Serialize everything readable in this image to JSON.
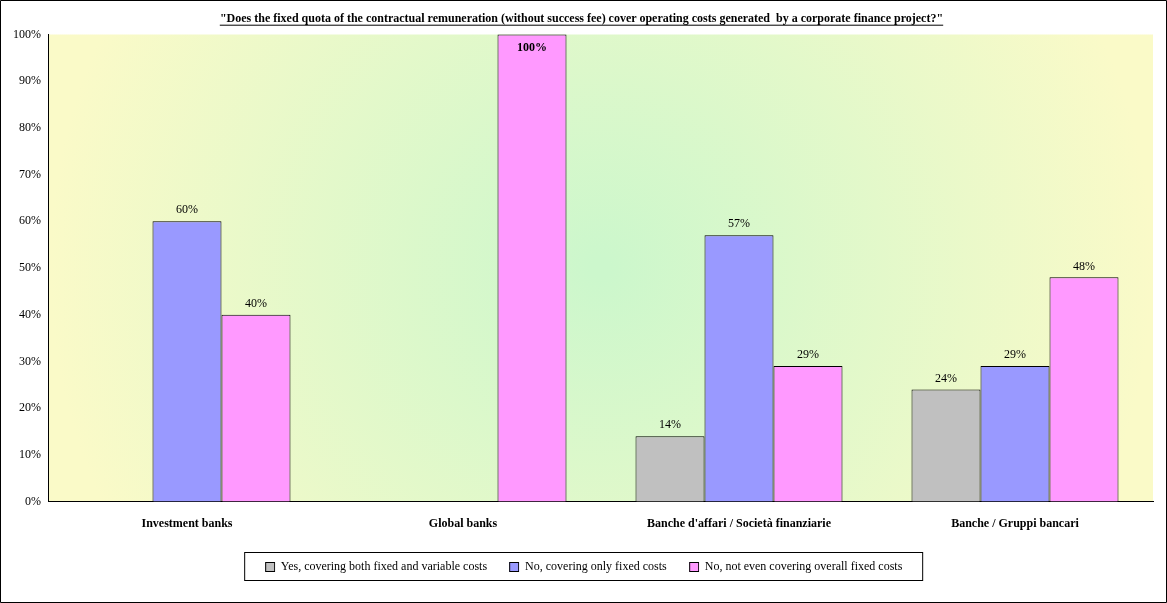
{
  "chart_data": {
    "type": "bar",
    "title": "\"Does the fixed quota of the contractual remuneration (without success fee) cover operating costs generated  by a corporate finance project?\"",
    "categories": [
      "Investment banks",
      "Global banks",
      "Banche d'affari / Società finanziarie",
      "Banche / Gruppi bancari"
    ],
    "series": [
      {
        "name": "Yes, covering both fixed and variable costs",
        "color": "#c0c0c0",
        "values": [
          null,
          null,
          14,
          24
        ],
        "value_labels": [
          null,
          null,
          "14%",
          "24%"
        ]
      },
      {
        "name": "No, covering only fixed costs",
        "color": "#9999ff",
        "values": [
          60,
          null,
          57,
          29
        ],
        "value_labels": [
          "60%",
          null,
          "57%",
          "29%"
        ]
      },
      {
        "name": "No, not even covering overall fixed costs",
        "color": "#ff99ff",
        "values": [
          40,
          100,
          29,
          48
        ],
        "value_labels": [
          "40%",
          "100%",
          "29%",
          "48%"
        ]
      }
    ],
    "ylim": [
      0,
      100
    ],
    "yticks": [
      {
        "value": 0,
        "label": "0%"
      },
      {
        "value": 10,
        "label": "10%"
      },
      {
        "value": 20,
        "label": "20%"
      },
      {
        "value": 30,
        "label": "30%"
      },
      {
        "value": 40,
        "label": "40%"
      },
      {
        "value": 50,
        "label": "50%"
      },
      {
        "value": 60,
        "label": "60%"
      },
      {
        "value": 70,
        "label": "70%"
      },
      {
        "value": 80,
        "label": "80%"
      },
      {
        "value": 90,
        "label": "90%"
      },
      {
        "value": 100,
        "label": "100%"
      }
    ],
    "grid": false,
    "legend": "bottom"
  }
}
